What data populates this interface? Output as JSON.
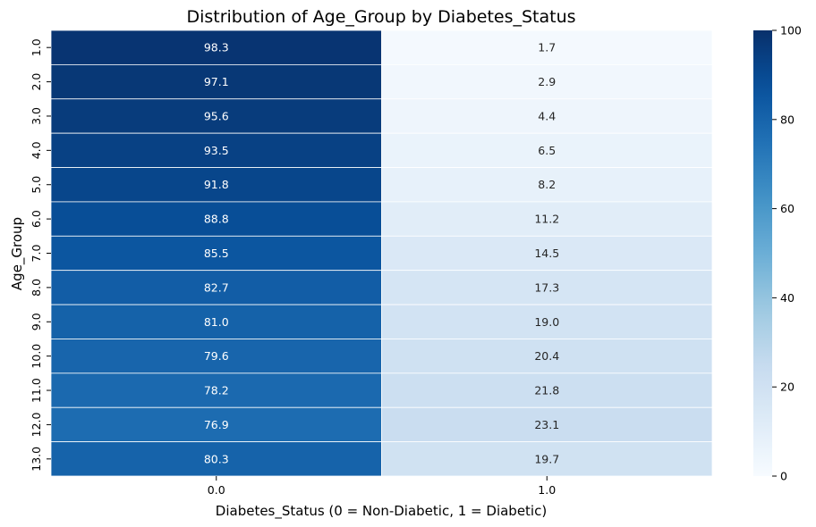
{
  "chart_data": {
    "type": "heatmap",
    "title": "Distribution of Age_Group by Diabetes_Status",
    "xlabel": "Diabetes_Status (0 = Non-Diabetic, 1 = Diabetic)",
    "ylabel": "Age_Group",
    "x_categories": [
      "0.0",
      "1.0"
    ],
    "y_categories": [
      "1.0",
      "2.0",
      "3.0",
      "4.0",
      "5.0",
      "6.0",
      "7.0",
      "8.0",
      "9.0",
      "10.0",
      "11.0",
      "12.0",
      "13.0"
    ],
    "values": [
      [
        98.3,
        1.7
      ],
      [
        97.1,
        2.9
      ],
      [
        95.6,
        4.4
      ],
      [
        93.5,
        6.5
      ],
      [
        91.8,
        8.2
      ],
      [
        88.8,
        11.2
      ],
      [
        85.5,
        14.5
      ],
      [
        82.7,
        17.3
      ],
      [
        81.0,
        19.0
      ],
      [
        79.6,
        20.4
      ],
      [
        78.2,
        21.8
      ],
      [
        76.9,
        23.1
      ],
      [
        80.3,
        19.7
      ]
    ],
    "value_labels": [
      [
        "98.3",
        "1.7"
      ],
      [
        "97.1",
        "2.9"
      ],
      [
        "95.6",
        "4.4"
      ],
      [
        "93.5",
        "6.5"
      ],
      [
        "91.8",
        "8.2"
      ],
      [
        "88.8",
        "11.2"
      ],
      [
        "85.5",
        "14.5"
      ],
      [
        "82.7",
        "17.3"
      ],
      [
        "81.0",
        "19.0"
      ],
      [
        "79.6",
        "20.4"
      ],
      [
        "78.2",
        "21.8"
      ],
      [
        "76.9",
        "23.1"
      ],
      [
        "80.3",
        "19.7"
      ]
    ],
    "colormap": "Blues",
    "color_range": [
      0,
      100
    ],
    "colorbar_ticks": [
      0,
      20,
      40,
      60,
      80,
      100
    ],
    "colorbar_tick_labels": [
      "0",
      "20",
      "40",
      "60",
      "80",
      "100"
    ],
    "cell_borders": true,
    "legend": "colorbar-right"
  }
}
